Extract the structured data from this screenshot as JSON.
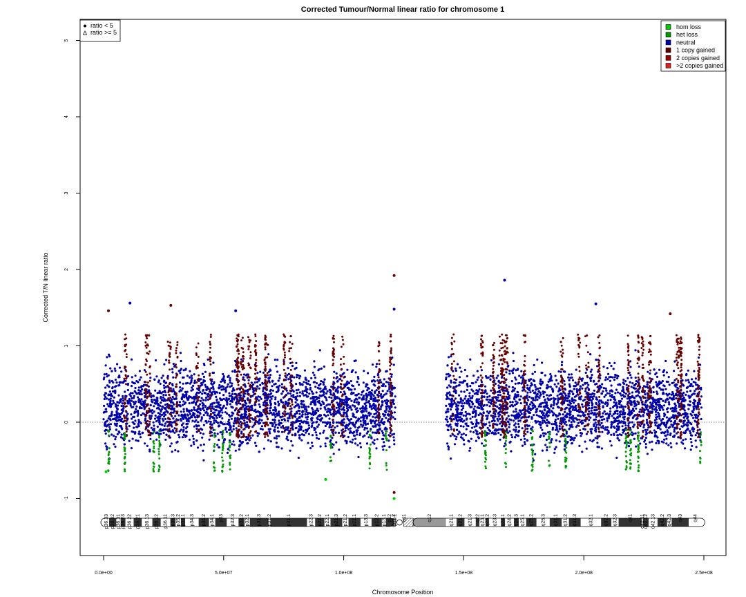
{
  "chart_data": {
    "type": "scatter",
    "title": "Corrected Tumour/Normal linear ratio for chromosome  1",
    "xlabel": "Chromosome Position",
    "ylabel": "Corrected T/N linear ratio",
    "xlim": [
      0,
      250000000
    ],
    "ylim": [
      -1.7,
      5.3
    ],
    "x_ticks": [
      0,
      50000000,
      100000000,
      150000000,
      200000000,
      250000000
    ],
    "x_tick_labels": [
      "0.0e+00",
      "5.0e+07",
      "1.0e+08",
      "1.5e+08",
      "2.0e+08",
      "2.5e+08"
    ],
    "y_ticks": [
      -1,
      0,
      1,
      2,
      3,
      4,
      5
    ],
    "y_tick_labels": [
      "-1",
      "0",
      "1",
      "2",
      "3",
      "4",
      "5"
    ],
    "reference_line": 0,
    "shape_legend": {
      "position": "top-left",
      "items": [
        {
          "symbol": "filled-circle",
          "label": "ratio < 5"
        },
        {
          "symbol": "open-triangle",
          "label": "ratio >= 5"
        }
      ]
    },
    "color_legend": {
      "position": "top-right",
      "items": [
        {
          "label": "hom loss",
          "color": "#00cc00"
        },
        {
          "label": "het loss",
          "color": "#009900"
        },
        {
          "label": "neutral",
          "color": "#0000aa"
        },
        {
          "label": "1 copy gained",
          "color": "#660000"
        },
        {
          "label": "2 copies gained",
          "color": "#990000"
        },
        {
          "label": ">2 copies gained",
          "color": "#dd2222"
        }
      ]
    },
    "data_regions": [
      {
        "start": 0,
        "end": 121500000,
        "status": "neutral",
        "ratio_range": [
          -0.55,
          0.95
        ]
      },
      {
        "start": 142500000,
        "end": 249000000,
        "status": "neutral",
        "ratio_range": [
          -0.55,
          0.95
        ]
      }
    ],
    "notable_points": [
      {
        "x": 1000000,
        "y": -0.65,
        "status": "hom loss"
      },
      {
        "x": 2000000,
        "y": 1.46,
        "status": "1 copy gained"
      },
      {
        "x": 11000000,
        "y": 1.56,
        "status": "neutral"
      },
      {
        "x": 28000000,
        "y": 1.53,
        "status": "1 copy gained"
      },
      {
        "x": 55000000,
        "y": 1.46,
        "status": "neutral"
      },
      {
        "x": 92500000,
        "y": -0.75,
        "status": "hom loss"
      },
      {
        "x": 121000000,
        "y": 1.92,
        "status": "1 copy gained"
      },
      {
        "x": 121000000,
        "y": 1.48,
        "status": "neutral"
      },
      {
        "x": 121000000,
        "y": -0.92,
        "status": "1 copy gained"
      },
      {
        "x": 121000000,
        "y": -1.0,
        "status": "hom loss"
      },
      {
        "x": 167000000,
        "y": 1.86,
        "status": "neutral"
      },
      {
        "x": 205000000,
        "y": 1.55,
        "status": "neutral"
      },
      {
        "x": 236000000,
        "y": 1.42,
        "status": "1 copy gained"
      }
    ],
    "ideogram": {
      "centromere": [
        121500000,
        125000000
      ],
      "heterochromatin": [
        125000000,
        142500000
      ],
      "bands": [
        {
          "name": "p36.33",
          "start": 0,
          "end": 2300000,
          "stain": "gneg"
        },
        {
          "name": "p36.32",
          "start": 2300000,
          "end": 5300000,
          "stain": "gpos"
        },
        {
          "name": "p36.31",
          "start": 5300000,
          "end": 7100000,
          "stain": "gneg"
        },
        {
          "name": "p36.23",
          "start": 7100000,
          "end": 9100000,
          "stain": "gpos"
        },
        {
          "name": "p36.22",
          "start": 9100000,
          "end": 12500000,
          "stain": "gneg"
        },
        {
          "name": "p36.21",
          "start": 12500000,
          "end": 15900000,
          "stain": "gpos"
        },
        {
          "name": "p36.13",
          "start": 15900000,
          "end": 20300000,
          "stain": "gneg"
        },
        {
          "name": "p36.12",
          "start": 20300000,
          "end": 23800000,
          "stain": "gpos"
        },
        {
          "name": "p36.11",
          "start": 23800000,
          "end": 27800000,
          "stain": "gneg"
        },
        {
          "name": "p35.3",
          "start": 27800000,
          "end": 30000000,
          "stain": "gpos"
        },
        {
          "name": "p35.2",
          "start": 30000000,
          "end": 32200000,
          "stain": "gneg"
        },
        {
          "name": "p35.1",
          "start": 32200000,
          "end": 34000000,
          "stain": "gpos"
        },
        {
          "name": "p34.3",
          "start": 34000000,
          "end": 39600000,
          "stain": "gneg"
        },
        {
          "name": "p34.2",
          "start": 39600000,
          "end": 43900000,
          "stain": "gpos"
        },
        {
          "name": "p34.1",
          "start": 43900000,
          "end": 46500000,
          "stain": "gneg"
        },
        {
          "name": "p33",
          "start": 46500000,
          "end": 51300000,
          "stain": "gpos"
        },
        {
          "name": "p32.3",
          "start": 51300000,
          "end": 56200000,
          "stain": "gneg"
        },
        {
          "name": "p32.2",
          "start": 56200000,
          "end": 58700000,
          "stain": "gpos"
        },
        {
          "name": "p32.1",
          "start": 58700000,
          "end": 60900000,
          "stain": "gneg"
        },
        {
          "name": "p31.3",
          "start": 60900000,
          "end": 68700000,
          "stain": "gpos"
        },
        {
          "name": "p31.2",
          "start": 68700000,
          "end": 69500000,
          "stain": "gneg"
        },
        {
          "name": "p31.1",
          "start": 69500000,
          "end": 84700000,
          "stain": "gpos"
        },
        {
          "name": "p22.3",
          "start": 84700000,
          "end": 88100000,
          "stain": "gneg"
        },
        {
          "name": "p22.2",
          "start": 88100000,
          "end": 92000000,
          "stain": "gpos"
        },
        {
          "name": "p22.1",
          "start": 92000000,
          "end": 94500000,
          "stain": "gneg"
        },
        {
          "name": "p21.3",
          "start": 94500000,
          "end": 99400000,
          "stain": "gpos"
        },
        {
          "name": "p21.2",
          "start": 99400000,
          "end": 102000000,
          "stain": "gneg"
        },
        {
          "name": "p21.1",
          "start": 102000000,
          "end": 107000000,
          "stain": "gpos"
        },
        {
          "name": "p13.3",
          "start": 107000000,
          "end": 111600000,
          "stain": "gneg"
        },
        {
          "name": "p13.2",
          "start": 111600000,
          "end": 115900000,
          "stain": "gpos"
        },
        {
          "name": "p13.1",
          "start": 115900000,
          "end": 117600000,
          "stain": "gneg"
        },
        {
          "name": "p12",
          "start": 117600000,
          "end": 120700000,
          "stain": "gpos"
        },
        {
          "name": "p11.2",
          "start": 120700000,
          "end": 121100000,
          "stain": "gneg"
        },
        {
          "name": "p11.1",
          "start": 121100000,
          "end": 121500000,
          "stain": "acen"
        },
        {
          "name": "q11",
          "start": 121500000,
          "end": 128900000,
          "stain": "acen"
        },
        {
          "name": "q12",
          "start": 128900000,
          "end": 142600000,
          "stain": "gvar"
        },
        {
          "name": "q21.1",
          "start": 142600000,
          "end": 147000000,
          "stain": "gneg"
        },
        {
          "name": "q21.2",
          "start": 147000000,
          "end": 150300000,
          "stain": "gpos"
        },
        {
          "name": "q21.3",
          "start": 150300000,
          "end": 155000000,
          "stain": "gneg"
        },
        {
          "name": "q22",
          "start": 155000000,
          "end": 156500000,
          "stain": "gpos"
        },
        {
          "name": "q23.1",
          "start": 156500000,
          "end": 159100000,
          "stain": "gneg"
        },
        {
          "name": "q23.2",
          "start": 159100000,
          "end": 160500000,
          "stain": "gpos"
        },
        {
          "name": "q23.3",
          "start": 160500000,
          "end": 165500000,
          "stain": "gneg"
        },
        {
          "name": "q24.1",
          "start": 165500000,
          "end": 167200000,
          "stain": "gpos"
        },
        {
          "name": "q24.2",
          "start": 167200000,
          "end": 170900000,
          "stain": "gneg"
        },
        {
          "name": "q24.3",
          "start": 170900000,
          "end": 172900000,
          "stain": "gpos"
        },
        {
          "name": "q25.1",
          "start": 172900000,
          "end": 176000000,
          "stain": "gneg"
        },
        {
          "name": "q25.2",
          "start": 176000000,
          "end": 180300000,
          "stain": "gpos"
        },
        {
          "name": "q25.3",
          "start": 180300000,
          "end": 185800000,
          "stain": "gneg"
        },
        {
          "name": "q31.1",
          "start": 185800000,
          "end": 190800000,
          "stain": "gpos"
        },
        {
          "name": "q31.2",
          "start": 190800000,
          "end": 193800000,
          "stain": "gneg"
        },
        {
          "name": "q31.3",
          "start": 193800000,
          "end": 198700000,
          "stain": "gpos"
        },
        {
          "name": "q32.1",
          "start": 198700000,
          "end": 207200000,
          "stain": "gneg"
        },
        {
          "name": "q32.2",
          "start": 207200000,
          "end": 211500000,
          "stain": "gpos"
        },
        {
          "name": "q32.3",
          "start": 211500000,
          "end": 214500000,
          "stain": "gneg"
        },
        {
          "name": "q41",
          "start": 214500000,
          "end": 224100000,
          "stain": "gpos"
        },
        {
          "name": "q42.11",
          "start": 224100000,
          "end": 224600000,
          "stain": "gneg"
        },
        {
          "name": "q42.12",
          "start": 224600000,
          "end": 227000000,
          "stain": "gpos"
        },
        {
          "name": "q42.13",
          "start": 227000000,
          "end": 230700000,
          "stain": "gneg"
        },
        {
          "name": "q42.2",
          "start": 230700000,
          "end": 234700000,
          "stain": "gpos"
        },
        {
          "name": "q42.3",
          "start": 234700000,
          "end": 236600000,
          "stain": "gneg"
        },
        {
          "name": "q43",
          "start": 236600000,
          "end": 243700000,
          "stain": "gpos"
        },
        {
          "name": "q44",
          "start": 243700000,
          "end": 249250621,
          "stain": "gneg"
        }
      ]
    }
  }
}
